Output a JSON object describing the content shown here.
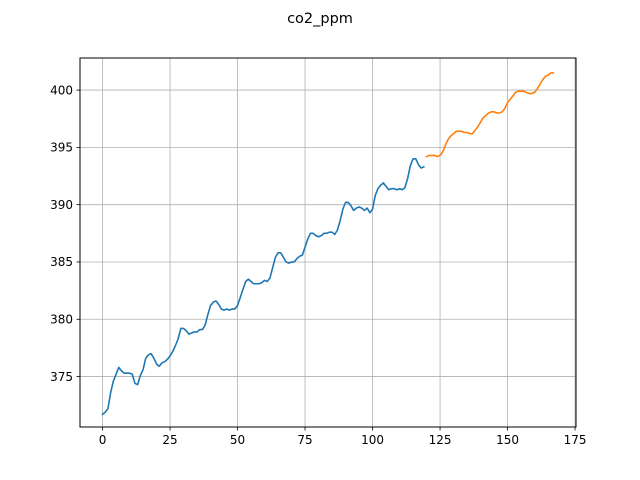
{
  "chart_data": {
    "type": "line",
    "title": "co2_ppm",
    "xlabel": "",
    "ylabel": "",
    "xlim": [
      -8.35,
      175.35
    ],
    "ylim": [
      370.6,
      402.8
    ],
    "x_ticks": [
      0,
      25,
      50,
      75,
      100,
      125,
      150,
      175
    ],
    "y_ticks": [
      375,
      380,
      385,
      390,
      395,
      400
    ],
    "grid": true,
    "legend": "none",
    "series": [
      {
        "color": "#1f77b4",
        "x": [
          0,
          1,
          2,
          3,
          4,
          5,
          6,
          7,
          8,
          9,
          10,
          11,
          12,
          13,
          14,
          15,
          16,
          17,
          18,
          19,
          20,
          21,
          22,
          23,
          24,
          25,
          26,
          27,
          28,
          29,
          30,
          31,
          32,
          33,
          34,
          35,
          36,
          37,
          38,
          39,
          40,
          41,
          42,
          43,
          44,
          45,
          46,
          47,
          48,
          49,
          50,
          51,
          52,
          53,
          54,
          55,
          56,
          57,
          58,
          59,
          60,
          61,
          62,
          63,
          64,
          65,
          66,
          67,
          68,
          69,
          70,
          71,
          72,
          73,
          74,
          75,
          76,
          77,
          78,
          79,
          80,
          81,
          82,
          83,
          84,
          85,
          86,
          87,
          88,
          89,
          90,
          91,
          92,
          93,
          94,
          95,
          96,
          97,
          98,
          99,
          100,
          101,
          102,
          103,
          104,
          105,
          106,
          107,
          108,
          109,
          110,
          111,
          112,
          113,
          114,
          115,
          116,
          117,
          118,
          119
        ],
        "y": [
          371.7,
          371.9,
          372.2,
          373.6,
          374.6,
          375.2,
          375.8,
          375.5,
          375.3,
          375.3,
          375.3,
          375.2,
          374.4,
          374.3,
          375.1,
          375.6,
          376.6,
          376.9,
          377.0,
          376.6,
          376.1,
          375.9,
          376.2,
          376.3,
          376.5,
          376.8,
          377.2,
          377.7,
          378.3,
          379.2,
          379.2,
          379.0,
          378.7,
          378.8,
          378.9,
          378.9,
          379.1,
          379.1,
          379.5,
          380.4,
          381.2,
          381.5,
          381.6,
          381.3,
          380.9,
          380.8,
          380.9,
          380.8,
          380.9,
          380.9,
          381.2,
          381.9,
          382.6,
          383.3,
          383.5,
          383.3,
          383.1,
          383.1,
          383.1,
          383.2,
          383.4,
          383.3,
          383.6,
          384.5,
          385.4,
          385.8,
          385.8,
          385.4,
          385.0,
          384.9,
          385.0,
          385.0,
          385.3,
          385.5,
          385.6,
          386.3,
          387.0,
          387.5,
          387.5,
          387.3,
          387.2,
          387.3,
          387.5,
          387.5,
          387.6,
          387.6,
          387.4,
          387.8,
          388.6,
          389.6,
          390.2,
          390.2,
          389.9,
          389.5,
          389.7,
          389.8,
          389.7,
          389.5,
          389.7,
          389.3,
          389.6,
          390.8,
          391.4,
          391.7,
          391.9,
          391.6,
          391.3,
          391.4,
          391.4,
          391.3,
          391.4,
          391.3,
          391.5,
          392.3,
          393.4,
          394.0,
          394.0,
          393.5,
          393.2,
          393.3
        ]
      },
      {
        "color": "#ff7f0e",
        "x": [
          120,
          121,
          122,
          123,
          124,
          125,
          126,
          127,
          128,
          129,
          130,
          131,
          132,
          133,
          134,
          135,
          136,
          137,
          138,
          139,
          140,
          141,
          142,
          143,
          144,
          145,
          146,
          147,
          148,
          149,
          150,
          151,
          152,
          153,
          154,
          155,
          156,
          157,
          158,
          159,
          160,
          161,
          162,
          163,
          164,
          165,
          166,
          167
        ],
        "y": [
          394.2,
          394.3,
          394.3,
          394.3,
          394.2,
          394.3,
          394.6,
          395.2,
          395.7,
          396.0,
          396.2,
          396.4,
          396.4,
          396.4,
          396.3,
          396.3,
          396.2,
          396.2,
          396.5,
          396.8,
          397.2,
          397.6,
          397.8,
          398.0,
          398.1,
          398.1,
          398.0,
          398.0,
          398.1,
          398.4,
          398.9,
          399.2,
          399.5,
          399.8,
          399.9,
          399.9,
          399.9,
          399.8,
          399.7,
          399.7,
          399.8,
          400.1,
          400.5,
          400.9,
          401.2,
          401.3,
          401.5,
          401.5
        ]
      }
    ]
  }
}
